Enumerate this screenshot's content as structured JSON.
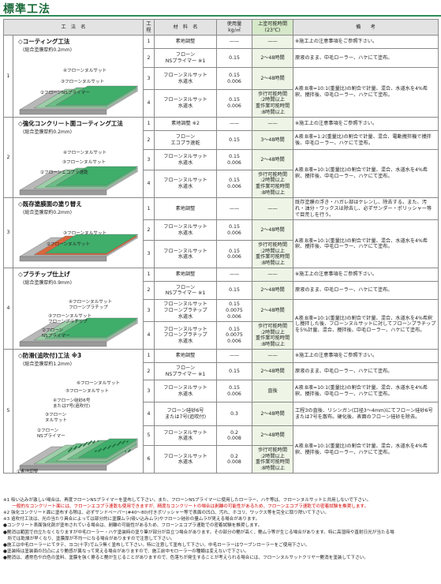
{
  "page_title": "標準工法",
  "headers": {
    "method": "工　法　名",
    "step": "工程",
    "material": "材　料　名",
    "amount": "使用量\nkg/㎡",
    "interval": "上塗可能時間\n(23℃)",
    "note": "備　　考"
  },
  "methods": [
    {
      "index": "1",
      "title": "◇コーティング工法",
      "subtitle": "(総合塗膜厚約0.2mm)",
      "labels": [
        "④フローンヌルサット",
        "③フローンヌルサット",
        "②フローンNSプライマー",
        "①素地調整"
      ],
      "rows": [
        {
          "step": "1",
          "material": "素地調整",
          "amount": "——",
          "interval": "——",
          "note": "※施工上の注意事項をご参照下さい。"
        },
        {
          "step": "2",
          "material": "フローン\nNSプライマー ※1",
          "amount": "0.15",
          "interval": "2〜48時間",
          "note": "原液のまま、中毛ローラー、ハケにて塗布。"
        },
        {
          "step": "3",
          "material": "フローンヌルサット\n水道水",
          "amount": "0.15\n0.006",
          "interval": "2〜48時間",
          "note": "A液:B液=10:1(重量比)の割合で計量、混合、水道水を4%希釈、攪拌後、中毛ローラー、ハケにて塗布。"
        },
        {
          "step": "4",
          "material": "フローンヌルサット\n水道水",
          "amount": "0.15\n0.006",
          "interval": "歩行可能時間\n:2時間以上\n重作業可能時間\n:8時間以上",
          "note": ""
        }
      ]
    },
    {
      "index": "2",
      "title": "◇強化コンクリート面コーティング工法",
      "subtitle": "(総合塗膜厚約0.2mm)",
      "labels": [
        "④フローンヌルサット",
        "③フローンヌルサット",
        "②フローンエコプラ速乾",
        "①素地調整"
      ],
      "rows": [
        {
          "step": "1",
          "material": "素地調整 ※2",
          "amount": "——",
          "interval": "——",
          "note": "※施工上の注意事項をご参照下さい。"
        },
        {
          "step": "2",
          "material": "フローン\nエコプラ速乾",
          "amount": "0.15",
          "interval": "3〜48時間",
          "note": "A液:B液=1:2(重量比)の割合で計量、混合、電動攪拌機で攪拌後、中毛ローラー、ハケにて塗布。"
        },
        {
          "step": "3",
          "material": "フローンヌルサット\n水道水",
          "amount": "0.15\n0.006",
          "interval": "2〜48時間",
          "note": "A液:B液=10:1(重量比)の割合で計量、混合、水道水を4%希釈、攪拌後、中毛ローラー、ハケにて塗布。"
        },
        {
          "step": "4",
          "material": "フローンヌルサット\n水道水",
          "amount": "0.15\n0.006",
          "interval": "歩行可能時間\n:2時間以上\n重作業可能時間\n:8時間以上",
          "note": ""
        }
      ]
    },
    {
      "index": "3",
      "title": "◇既存塗膜面の塗り替え",
      "subtitle": "(総合塗膜厚約0.2mm)",
      "labels": [
        "③フローンヌルサット",
        "②フローンヌルサット",
        "①素地調整"
      ],
      "rows": [
        {
          "step": "1",
          "material": "素地調整",
          "amount": "——",
          "interval": "——",
          "note": "既存塗膜の浮き・ハガレ部はケレンし、除去する。また、汚れ・油分・ワックスは除去し、必ずサンダー・ポリッシャー等で目荒しを行う。"
        },
        {
          "step": "2",
          "material": "フローンヌルサット\n水道水",
          "amount": "0.15\n0.006",
          "interval": "2〜48時間",
          "note": "A液:B液=10:1(重量比)の割合で計量、混合、水道水を4%希釈、攪拌後、中毛ローラー、ハケにて塗布。"
        },
        {
          "step": "3",
          "material": "フローンヌルサット\n水道水",
          "amount": "0.15\n0.006",
          "interval": "歩行可能時間\n:2時間以上\n重作業可能時間\n:8時間以上",
          "note": ""
        }
      ]
    },
    {
      "index": "4",
      "title": "◇プラチップ仕上げ",
      "subtitle": "(総合塗膜厚約0.9mm)",
      "labels": [
        "④フローンヌルサット\nフローンプラチップ",
        "③フローンヌルサット\nフローンプラチップ",
        "②フローン\nNSプライマー",
        "①素地調整"
      ],
      "rows": [
        {
          "step": "1",
          "material": "素地調整",
          "amount": "——",
          "interval": "——",
          "note": "※施工上の注意事項をご参照下さい。"
        },
        {
          "step": "2",
          "material": "フローン\nNSプライマー ※1",
          "amount": "0.15",
          "interval": "2〜48時間",
          "note": "原液のまま、中毛ローラー、ハケにて塗布。"
        },
        {
          "step": "3",
          "material": "フローンヌルサット\nフローンプラチップ\n水道水",
          "amount": "0.15\n0.0075\n0.006",
          "interval": "2〜48時間",
          "note": "A液:B液=10:1(重量比)の割合で計量、混合、水道水を4%希釈し攪拌した後、フローンヌルサットに対してフローンプラチップを5%計量、混合、攪拌後、中毛ローラー、ハケにて塗布。"
        },
        {
          "step": "4",
          "material": "フローンヌルサット\nフローンプラチップ\n水道水",
          "amount": "0.15\n0.0075\n0.006",
          "interval": "歩行可能時間\n:2時間以上\n重作業可能時間\n:8時間以上",
          "note": ""
        }
      ]
    },
    {
      "index": "5",
      "title": "◇防滑(追吹付)工法 ※3",
      "subtitle": "(総合塗膜厚約1.2mm)",
      "labels": [
        "⑥フローンヌルサット",
        "⑤フローンヌルサット",
        "④フローン硅砂6号\nまたは7号(追吹付)",
        "③フローン\nヌルサット",
        "②フローン\nNSプライマー",
        "①素地調整"
      ],
      "rows": [
        {
          "step": "1",
          "material": "素地調整",
          "amount": "——",
          "interval": "——",
          "note": "※施工上の注意事項をご参照下さい。"
        },
        {
          "step": "2",
          "material": "フローン\nNSプライマー ※1",
          "amount": "0.15",
          "interval": "2〜48時間",
          "note": "原液のまま、中毛ローラー、ハケにて塗布。"
        },
        {
          "step": "3",
          "material": "フローンヌルサット\n水道水",
          "amount": "0.15\n0.006",
          "interval": "直後",
          "note": "A液:B液=10:1(重量比)の割合で計量、混合、水道水を4%希釈、攪拌後、中毛ローラー、ハケにて塗布。"
        },
        {
          "step": "4",
          "material": "フローン硅砂6号\nまたは7号(追吹付)",
          "amount": "0.3",
          "interval": "2〜48時間",
          "note": "工程3の直後、リシンガン(口径3〜4mm)にてフローン硅砂6号または7号を散布。硬化後、表面のフローン硅砂を除去。"
        },
        {
          "step": "5",
          "material": "フローンヌルサット\n水道水",
          "amount": "0.2\n0.008",
          "interval": "2〜48時間",
          "note": "A液:B液=10:1(重量比)の割合で計量、混合、水道水を4%希釈、攪拌後、中毛ローラー、ハケにて塗布。"
        },
        {
          "step": "6",
          "material": "フローンヌルサット\n水道水",
          "amount": "0.2\n0.008",
          "interval": "歩行可能時間\n:2時間以上\n重作業可能時間\n:8時間以上",
          "note": ""
        }
      ]
    }
  ],
  "footnotes": [
    {
      "text": "※1 吸い込みが激しい場合は、再度フローンNSプライマーを塗布して下さい。また、フローンNSプライマーに使用したローラー、ハケ等は、フローンヌルサットと共用しないで下さい。",
      "red": false
    },
    {
      "text": "　　一般的なコンクリート面には、フローンエコプラ速乾も使用できますが、精度なコンクリートの場合は剥離の可能性があるため、フローンエコプラ速乾での密着試験を推奨します。",
      "red": true
    },
    {
      "text": "※2 強化コンクリート面に塗布する際は、必ずサンドペーパー(#40〜80)付きポリッシャー等で表面の凹凸、汚れ、ホコリ、ワックス等を完全に取り除いて下さい。",
      "red": false
    },
    {
      "text": "※3 追吹付工法は、光の当たり具合によっては部分的に塗膜ムラ(吸い込みムラ)やフローン硅砂の量ムラが見える場合があります。",
      "red": false
    },
    {
      "text": "●コンクリート表面強化剤が塗布されている場合は、剥離の可能性があるため、フローンエコプラ速乾での密着試験を推奨します。",
      "red": false
    },
    {
      "text": "●艶消は範囲で白立たなくなりますが中毛ローラー・ハケ塗装時の塗り筆が部分が目立つ場合があります。その部分の艶が高く、艶ムラ等が生じる場合があります。特に高湿時や直射日光が当たる場",
      "red": false
    },
    {
      "text": "　所では乾燥が早くなり、塗膜厚が不均一になる場合がありますので注意して下さい。",
      "red": false
    },
    {
      "text": "●施工は中毛ローラーにてタテ、ヨコ(十字)でムラ無く塗布して下さい。特に注意して塗布して下さい。中毛ローラーはウーブンローラーをご使用下さい。",
      "red": false
    },
    {
      "text": "●塗装時は塗装面の凹凸により艶感が異なって見える場合がありますので、施工前中モローラーの種類は変えないで下さい。",
      "red": false
    },
    {
      "text": "●艶消は、通常色や白色の塗料、塗膜を強く擦ると艶が生じることがありますので、色落ちが発生することが考えられる場合には、フローンヌルサットクリヤー艶消を塗装して下さい。",
      "red": false
    }
  ],
  "colors": {
    "accent": "#2e8b57",
    "header_bg": "#e3e3e3",
    "interval_bg": "#eef5e6",
    "coat_green": "#3fae6b",
    "old_coat": "#d9673c"
  }
}
